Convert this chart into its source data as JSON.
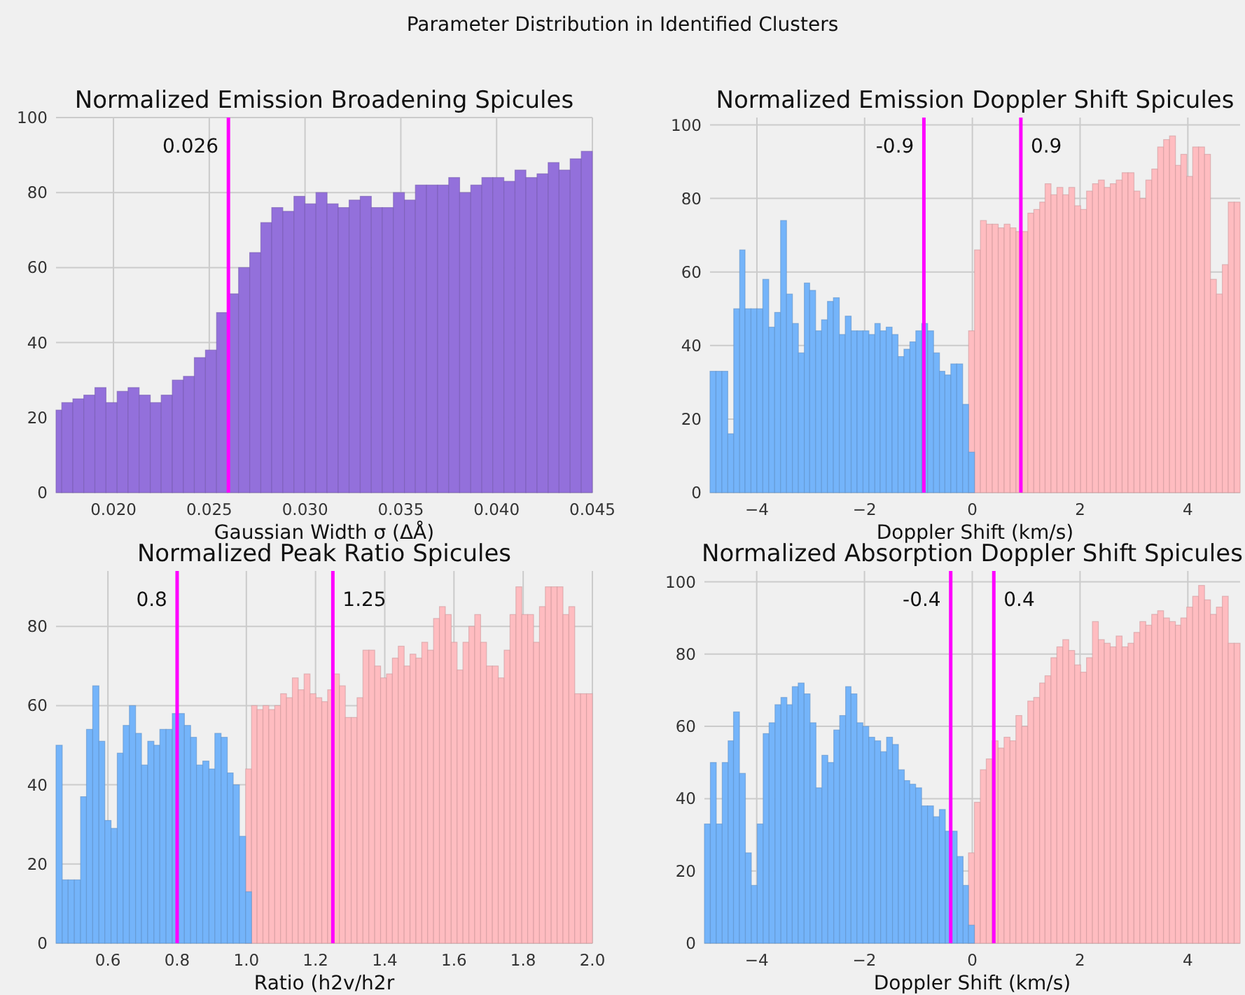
{
  "chart_data": [
    {
      "type": "other",
      "title": "Parameter Distribution in Identified Clusters"
    },
    {
      "type": "histogram",
      "title": "Normalized Emission Broadening Spicules",
      "xlabel": "Gaussian Width σ (ΔÅ)",
      "color": "#9370db",
      "bins": [
        0.017,
        0.0173,
        0.01788,
        0.01845,
        0.01903,
        0.01961,
        0.02019,
        0.02076,
        0.02134,
        0.02192,
        0.02249,
        0.02307,
        0.02365,
        0.02422,
        0.0248,
        0.02538,
        0.02596,
        0.02653,
        0.02711,
        0.02769,
        0.02826,
        0.02884,
        0.02942,
        0.02999,
        0.03057,
        0.03115,
        0.03173,
        0.0323,
        0.03288,
        0.03346,
        0.03403,
        0.03461,
        0.03519,
        0.03576,
        0.03634,
        0.03692,
        0.0375,
        0.03807,
        0.03865,
        0.03923,
        0.0398,
        0.04038,
        0.04096,
        0.04153,
        0.04211,
        0.04269,
        0.04326,
        0.04384,
        0.04442,
        0.045
      ],
      "values": [
        22,
        24,
        25,
        26,
        28,
        24,
        27,
        28,
        26,
        24,
        26,
        30,
        31,
        36,
        38,
        48,
        53,
        60,
        64,
        72,
        76,
        75,
        79,
        77,
        80,
        77,
        76,
        78,
        79,
        76,
        76,
        80,
        78,
        82,
        82,
        82,
        84,
        80,
        82,
        84,
        84,
        83,
        86,
        84,
        85,
        88,
        86,
        89,
        91
      ],
      "xlim": [
        0.017,
        0.045
      ],
      "ylim": [
        0,
        100
      ],
      "xticks": [
        {
          "value": 0.02,
          "label": "0.020"
        },
        0.025,
        {
          "value": 0.03,
          "label": "0.030"
        },
        0.035,
        {
          "value": 0.04,
          "label": "0.040"
        },
        0.045
      ],
      "yticks": [
        0,
        20,
        40,
        60,
        80,
        100
      ],
      "grid": true,
      "ref_lines": [
        {
          "axis": "x",
          "value": 0.026,
          "label": "0.026",
          "color": "#ff00ff"
        }
      ]
    },
    {
      "type": "histogram",
      "title": "Normalized Emission Doppler Shift Spicules",
      "xlabel": "Doppler Shift (km/s)",
      "bins": [
        -4.87,
        -4.76,
        -4.65,
        -4.54,
        -4.43,
        -4.32,
        -4.22,
        -4.11,
        -4.0,
        -3.89,
        -3.78,
        -3.67,
        -3.56,
        -3.45,
        -3.34,
        -3.23,
        -3.12,
        -3.02,
        -2.91,
        -2.8,
        -2.69,
        -2.58,
        -2.47,
        -2.36,
        -2.25,
        -2.14,
        -2.03,
        -1.92,
        -1.81,
        -1.71,
        -1.6,
        -1.49,
        -1.38,
        -1.27,
        -1.16,
        -1.05,
        -0.94,
        -0.83,
        -0.72,
        -0.61,
        -0.51,
        -0.4,
        -0.29,
        -0.18,
        -0.07,
        0.04,
        0.15,
        0.26,
        0.37,
        0.48,
        0.59,
        0.7,
        0.81,
        0.92,
        1.03,
        1.14,
        1.25,
        1.35,
        1.46,
        1.57,
        1.68,
        1.79,
        1.9,
        2.01,
        2.12,
        2.23,
        2.34,
        2.45,
        2.56,
        2.67,
        2.78,
        2.89,
        3.0,
        3.11,
        3.22,
        3.33,
        3.44,
        3.55,
        3.66,
        3.77,
        3.87,
        3.98,
        4.09,
        4.2,
        4.31,
        4.42,
        4.53,
        4.64,
        4.75,
        4.86,
        4.97
      ],
      "series": [
        {
          "color": "#ffbcc0",
          "values": [
            null,
            null,
            null,
            null,
            null,
            null,
            null,
            null,
            null,
            null,
            null,
            null,
            null,
            null,
            null,
            null,
            null,
            null,
            null,
            null,
            null,
            null,
            null,
            null,
            null,
            null,
            null,
            null,
            null,
            null,
            null,
            null,
            null,
            null,
            null,
            null,
            null,
            null,
            null,
            null,
            null,
            null,
            null,
            null,
            44,
            66,
            74,
            73,
            73,
            72,
            73,
            72,
            71,
            71,
            76,
            77,
            79,
            84,
            81,
            83,
            81,
            83,
            78,
            77,
            82,
            84,
            85,
            83,
            84,
            85,
            87,
            87,
            82,
            80,
            85,
            88,
            94,
            96,
            97,
            89,
            92,
            86,
            94,
            94,
            92,
            58,
            54,
            62,
            79,
            79
          ]
        },
        {
          "color": "#74b4fa",
          "values": [
            33,
            33,
            33,
            16,
            50,
            66,
            50,
            50,
            50,
            58,
            45,
            49,
            74,
            54,
            46,
            38,
            57,
            55,
            44,
            47,
            52,
            53,
            43,
            48,
            44,
            44,
            44,
            43,
            46,
            44,
            45,
            43,
            37,
            39,
            41,
            44,
            46,
            44,
            38,
            33,
            32,
            35,
            35,
            24,
            11,
            null,
            null,
            null,
            null,
            null,
            null,
            null,
            null,
            null,
            null,
            null,
            null,
            null,
            null,
            null,
            null,
            null,
            null,
            null,
            null,
            null,
            null,
            null,
            null,
            null,
            null,
            null,
            null,
            null,
            null,
            null,
            null,
            null,
            null,
            null,
            null,
            null,
            null,
            null,
            null,
            null,
            null,
            null,
            null,
            null
          ]
        }
      ],
      "xlim": [
        -4.87,
        4.97
      ],
      "ylim": [
        0,
        102
      ],
      "xticks": [
        {
          "value": -4,
          "label": "−4"
        },
        {
          "value": -2,
          "label": "−2"
        },
        0,
        2,
        4
      ],
      "yticks": [
        0,
        20,
        40,
        60,
        80,
        100
      ],
      "grid": true,
      "ref_lines": [
        {
          "axis": "x",
          "value": -0.9,
          "label": "-0.9",
          "color": "#ff00ff"
        },
        {
          "axis": "x",
          "value": 0.9,
          "label": "0.9",
          "color": "#ff00ff"
        }
      ]
    },
    {
      "type": "histogram",
      "title": "Normalized Peak Ratio Spicules",
      "xlabel": "Ratio (h2v/h2r",
      "bins": [
        0.45,
        0.468,
        0.485,
        0.503,
        0.521,
        0.538,
        0.556,
        0.574,
        0.591,
        0.609,
        0.627,
        0.644,
        0.662,
        0.68,
        0.697,
        0.715,
        0.733,
        0.75,
        0.768,
        0.786,
        0.803,
        0.821,
        0.839,
        0.856,
        0.874,
        0.892,
        0.909,
        0.927,
        0.945,
        0.962,
        0.98,
        0.998,
        1.015,
        1.031,
        1.048,
        1.065,
        1.082,
        1.099,
        1.116,
        1.133,
        1.15,
        1.167,
        1.184,
        1.201,
        1.218,
        1.235,
        1.252,
        1.269,
        1.286,
        1.303,
        1.32,
        1.337,
        1.354,
        1.371,
        1.388,
        1.405,
        1.422,
        1.439,
        1.456,
        1.473,
        1.49,
        1.507,
        1.524,
        1.541,
        1.558,
        1.575,
        1.592,
        1.609,
        1.626,
        1.643,
        1.66,
        1.677,
        1.694,
        1.711,
        1.728,
        1.745,
        1.762,
        1.779,
        1.796,
        1.813,
        1.83,
        1.847,
        1.864,
        1.881,
        1.898,
        1.915,
        1.932,
        1.949,
        1.966,
        1.983,
        2.0
      ],
      "series": [
        {
          "color": "#ffbcc0",
          "values": [
            null,
            null,
            null,
            null,
            null,
            null,
            null,
            null,
            null,
            null,
            null,
            null,
            null,
            null,
            null,
            null,
            null,
            null,
            null,
            null,
            null,
            null,
            null,
            null,
            null,
            null,
            null,
            null,
            null,
            null,
            null,
            44,
            60,
            59,
            60,
            59,
            60,
            63,
            62,
            67,
            64,
            68,
            63,
            62,
            61,
            64,
            68,
            65,
            57,
            57,
            62,
            74,
            74,
            70,
            67,
            68,
            72,
            75,
            70,
            73,
            72,
            76,
            74,
            82,
            85,
            83,
            76,
            69,
            76,
            80,
            83,
            76,
            70,
            70,
            67,
            74,
            83,
            90,
            83,
            83,
            76,
            85,
            90,
            90,
            90,
            83,
            85,
            63,
            63,
            63
          ]
        },
        {
          "color": "#74b4fa",
          "values": [
            50,
            16,
            16,
            16,
            37,
            54,
            65,
            51,
            31,
            29,
            48,
            55,
            60,
            53,
            45,
            51,
            50,
            54,
            54,
            58,
            58,
            55,
            52,
            45,
            46,
            44,
            53,
            52,
            43,
            40,
            27,
            13,
            null,
            null,
            null,
            null,
            null,
            null,
            null,
            null,
            null,
            null,
            null,
            null,
            null,
            null,
            null,
            null,
            null,
            null,
            null,
            null,
            null,
            null,
            null,
            null,
            null,
            null,
            null,
            null,
            null,
            null,
            null,
            null,
            null,
            null,
            null,
            null,
            null,
            null,
            null,
            null,
            null,
            null,
            null,
            null,
            null,
            null,
            null,
            null,
            null,
            null,
            null,
            null,
            null,
            null,
            null,
            null,
            null,
            null
          ]
        }
      ],
      "xlim": [
        0.45,
        2.0
      ],
      "ylim": [
        0,
        94
      ],
      "xticks": [
        0.6,
        0.8,
        {
          "value": 1,
          "label": "1.0"
        },
        1.2,
        1.4,
        1.6,
        1.8,
        {
          "value": 2,
          "label": "2.0"
        }
      ],
      "yticks": [
        0,
        20,
        40,
        60,
        80
      ],
      "grid": true,
      "ref_lines": [
        {
          "axis": "x",
          "value": 0.8,
          "label": "0.8",
          "color": "#ff00ff"
        },
        {
          "axis": "x",
          "value": 1.25,
          "label": "1.25",
          "color": "#ff00ff"
        }
      ]
    },
    {
      "type": "histogram",
      "title": "Normalized Absorption Doppler Shift Spicules",
      "xlabel": "Doppler Shift (km/s)",
      "bins": [
        -4.97,
        -4.86,
        -4.75,
        -4.64,
        -4.53,
        -4.43,
        -4.32,
        -4.21,
        -4.1,
        -3.99,
        -3.88,
        -3.77,
        -3.66,
        -3.55,
        -3.44,
        -3.34,
        -3.23,
        -3.12,
        -3.01,
        -2.9,
        -2.79,
        -2.68,
        -2.57,
        -2.46,
        -2.35,
        -2.25,
        -2.14,
        -2.03,
        -1.92,
        -1.81,
        -1.7,
        -1.59,
        -1.48,
        -1.37,
        -1.26,
        -1.16,
        -1.05,
        -0.94,
        -0.83,
        -0.72,
        -0.61,
        -0.5,
        -0.39,
        -0.28,
        -0.17,
        -0.07,
        0.04,
        0.15,
        0.26,
        0.37,
        0.48,
        0.59,
        0.7,
        0.81,
        0.92,
        1.03,
        1.14,
        1.25,
        1.35,
        1.46,
        1.57,
        1.68,
        1.79,
        1.9,
        2.01,
        2.12,
        2.23,
        2.34,
        2.45,
        2.56,
        2.67,
        2.78,
        2.89,
        3.0,
        3.11,
        3.22,
        3.33,
        3.44,
        3.55,
        3.66,
        3.77,
        3.87,
        3.98,
        4.09,
        4.2,
        4.31,
        4.42,
        4.53,
        4.64,
        4.75,
        4.86,
        4.97
      ],
      "series": [
        {
          "color": "#ffbcc0",
          "values": [
            null,
            null,
            null,
            null,
            null,
            null,
            null,
            null,
            null,
            null,
            null,
            null,
            null,
            null,
            null,
            null,
            null,
            null,
            null,
            null,
            null,
            null,
            null,
            null,
            null,
            null,
            null,
            null,
            null,
            null,
            null,
            null,
            null,
            null,
            null,
            null,
            null,
            null,
            null,
            null,
            null,
            null,
            null,
            null,
            null,
            25,
            39,
            48,
            51,
            56,
            54,
            57,
            56,
            63,
            60,
            67,
            68,
            72,
            74,
            79,
            82,
            84,
            81,
            77,
            75,
            79,
            89,
            84,
            83,
            82,
            85,
            82,
            83,
            86,
            89,
            88,
            91,
            92,
            90,
            89,
            88,
            90,
            93,
            96,
            99,
            95,
            91,
            93,
            96,
            83,
            83
          ]
        },
        {
          "color": "#74b4fa",
          "values": [
            33,
            50,
            33,
            50,
            56,
            64,
            47,
            25,
            16,
            33,
            58,
            61,
            66,
            68,
            66,
            71,
            72,
            69,
            61,
            43,
            52,
            50,
            59,
            63,
            71,
            69,
            61,
            60,
            57,
            56,
            53,
            57,
            55,
            48,
            45,
            44,
            43,
            38,
            38,
            35,
            37,
            31,
            31,
            24,
            16,
            5,
            null,
            null,
            null,
            null,
            null,
            null,
            null,
            null,
            null,
            null,
            null,
            null,
            null,
            null,
            null,
            null,
            null,
            null,
            null,
            null,
            null,
            null,
            null,
            null,
            null,
            null,
            null,
            null,
            null,
            null,
            null,
            null,
            null,
            null,
            null,
            null,
            null,
            null,
            null,
            null,
            null,
            null,
            null,
            null,
            null
          ]
        }
      ],
      "xlim": [
        -4.97,
        4.97
      ],
      "ylim": [
        0,
        103
      ],
      "xticks": [
        {
          "value": -4,
          "label": "−4"
        },
        {
          "value": -2,
          "label": "−2"
        },
        0,
        2,
        4
      ],
      "yticks": [
        0,
        20,
        40,
        60,
        80,
        100
      ],
      "grid": true,
      "ref_lines": [
        {
          "axis": "x",
          "value": -0.4,
          "label": "-0.4",
          "color": "#ff00ff"
        },
        {
          "axis": "x",
          "value": 0.4,
          "label": "0.4",
          "color": "#ff00ff"
        }
      ]
    }
  ]
}
